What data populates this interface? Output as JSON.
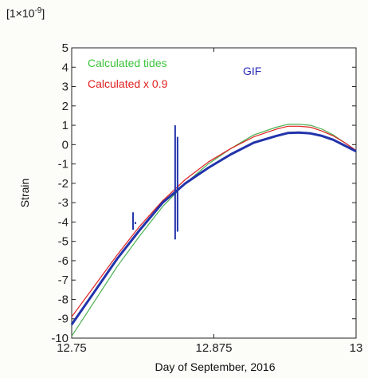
{
  "chart_data": {
    "type": "line",
    "multiplier_base": "[1×10",
    "multiplier_exp": "-9",
    "multiplier_close": "]",
    "xlabel": "Day of September, 2016",
    "ylabel": "Strain",
    "xlim": [
      12.75,
      13
    ],
    "ylim": [
      -10,
      5
    ],
    "xticks": [
      12.75,
      12.875,
      13
    ],
    "xtick_labels": [
      "12.75",
      "12.875",
      "13"
    ],
    "yticks": [
      5,
      4,
      3,
      2,
      1,
      0,
      -1,
      -2,
      -3,
      -4,
      -5,
      -6,
      -7,
      -8,
      -9,
      -10
    ],
    "ytick_labels": [
      "5",
      "4",
      "3",
      "2",
      "1",
      "0",
      "-1",
      "-2",
      "-3",
      "-4",
      "-5",
      "-6",
      "-7",
      "-8",
      "-9",
      "-10"
    ],
    "series": [
      {
        "name": "Calculated tides",
        "color": "#4caf50",
        "x": [
          12.75,
          12.77,
          12.79,
          12.81,
          12.83,
          12.85,
          12.87,
          12.89,
          12.91,
          12.93,
          12.94,
          12.95,
          12.96,
          12.97,
          12.98,
          12.99,
          13.0
        ],
        "y": [
          -9.9,
          -8.1,
          -6.3,
          -4.7,
          -3.2,
          -2.0,
          -1.0,
          -0.2,
          0.5,
          0.9,
          1.05,
          1.05,
          1.0,
          0.8,
          0.5,
          0.1,
          -0.3
        ]
      },
      {
        "name": "Calculated x 0.9",
        "color": "#e02020",
        "x": [
          12.75,
          12.77,
          12.79,
          12.81,
          12.83,
          12.85,
          12.87,
          12.89,
          12.91,
          12.93,
          12.94,
          12.95,
          12.96,
          12.97,
          12.98,
          12.99,
          13.0
        ],
        "y": [
          -8.9,
          -7.3,
          -5.7,
          -4.2,
          -2.9,
          -1.8,
          -0.9,
          -0.2,
          0.4,
          0.8,
          0.95,
          0.95,
          0.9,
          0.7,
          0.45,
          0.1,
          -0.3
        ]
      },
      {
        "name": "GIF",
        "color": "#2233aa",
        "x": [
          12.75,
          12.77,
          12.79,
          12.81,
          12.83,
          12.85,
          12.87,
          12.89,
          12.91,
          12.93,
          12.94,
          12.95,
          12.96,
          12.97,
          12.98,
          12.99,
          13.0
        ],
        "y": [
          -9.3,
          -7.6,
          -5.9,
          -4.4,
          -3.0,
          -2.0,
          -1.2,
          -0.5,
          0.1,
          0.45,
          0.6,
          0.62,
          0.58,
          0.45,
          0.25,
          -0.05,
          -0.35
        ],
        "spikes": [
          {
            "x": 12.805,
            "ymin": -4.4,
            "ymax": -3.5
          },
          {
            "x": 12.842,
            "ymin": -4.9,
            "ymax": 1.0
          }
        ]
      }
    ],
    "legend": [
      {
        "label": "Calculated tides",
        "color": "#3cc43c"
      },
      {
        "label": "Calculated x 0.9",
        "color": "#e02020"
      },
      {
        "label": "GIF",
        "color": "#2a2ab8"
      }
    ]
  }
}
